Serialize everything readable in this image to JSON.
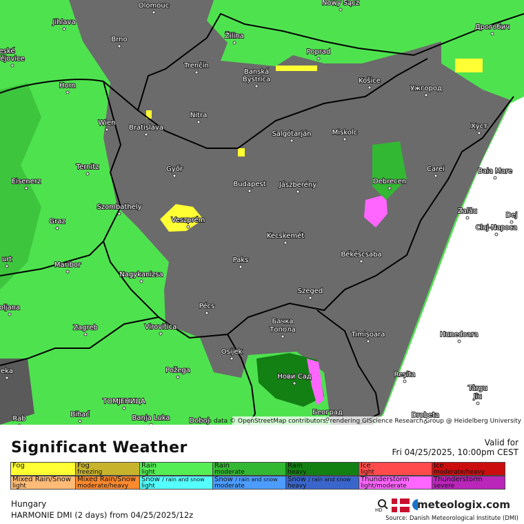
{
  "map": {
    "cities": [
      {
        "label": "Olomouc"
      },
      {
        "label": "Nowy Sącz"
      },
      {
        "label": "Jihlava"
      },
      {
        "label": "eské"
      },
      {
        "label": "ějovice"
      },
      {
        "label": "Brno"
      },
      {
        "label": "Žilina"
      },
      {
        "label": "Poprad"
      },
      {
        "label": "Дрогобич"
      },
      {
        "label": "Horn"
      },
      {
        "label": "Trenčín"
      },
      {
        "label": "Banská"
      },
      {
        "label": "Bystrica"
      },
      {
        "label": "Košice"
      },
      {
        "label": "Ужгород"
      },
      {
        "label": "Wien"
      },
      {
        "label": "Bratislava"
      },
      {
        "label": "Nitra"
      },
      {
        "label": "Salgótarján"
      },
      {
        "label": "Miskolc"
      },
      {
        "label": "Хуст"
      },
      {
        "label": "Ternitz"
      },
      {
        "label": "Győr"
      },
      {
        "label": "Carei"
      },
      {
        "label": "Baia Mare"
      },
      {
        "label": "Eisenerz"
      },
      {
        "label": "Budapest"
      },
      {
        "label": "Jászberény"
      },
      {
        "label": "Debrecen"
      },
      {
        "label": "Szombathely"
      },
      {
        "label": "Zalău"
      },
      {
        "label": "Dej"
      },
      {
        "label": "Veszprém"
      },
      {
        "label": "Graz"
      },
      {
        "label": "Cluj-Napoca"
      },
      {
        "label": "Kecskemét"
      },
      {
        "label": "Békéscsaba"
      },
      {
        "label": "Paks"
      },
      {
        "label": "urt"
      },
      {
        "label": "Maribor"
      },
      {
        "label": "Nagykanizsa"
      },
      {
        "label": "Szeged"
      },
      {
        "label": "oljana"
      },
      {
        "label": "Pécs"
      },
      {
        "label": "Zagreb"
      },
      {
        "label": "Virovitica"
      },
      {
        "label": "Бачка"
      },
      {
        "label": "Топола"
      },
      {
        "label": "Timișoara"
      },
      {
        "label": "Hunedoara"
      },
      {
        "label": "Osijek"
      },
      {
        "label": "Нови Сад"
      },
      {
        "label": "Požega"
      },
      {
        "label": "Reșita"
      },
      {
        "label": "eka"
      },
      {
        "label": "Târgu"
      },
      {
        "label": "Jiu"
      },
      {
        "label": "ТОМЈЕНИЦА"
      },
      {
        "label": "Београд"
      },
      {
        "label": "Bihać"
      },
      {
        "label": "Banja Luka"
      },
      {
        "label": "Doboj"
      },
      {
        "label": "Rab"
      },
      {
        "label": "Drobeta"
      }
    ],
    "attribution": "Map data © OpenStreetMap contributors, rendering GIScience Research Group @ Heidelberg University"
  },
  "header": {
    "title": "Significant Weather",
    "valid_label": "Valid for",
    "valid_time": "Fri 04/25/2025, 10:00pm CEST"
  },
  "legend": {
    "rows": [
      [
        {
          "label": "Fog",
          "color": "#ffff33"
        },
        {
          "label": "Fog",
          "sub": "freezing",
          "color": "#c8b42c"
        },
        {
          "label": "Rain",
          "sub": "light",
          "color": "#55ee55"
        },
        {
          "label": "Rain",
          "sub": "moderate",
          "color": "#33b833"
        },
        {
          "label": "Rain",
          "sub": "heavy",
          "color": "#138013"
        },
        {
          "label": "Ice",
          "sub": "light",
          "color": "#ff4b4b"
        },
        {
          "label": "Ice",
          "sub": "moderate/heavy",
          "color": "#cc0d0d"
        }
      ],
      [
        {
          "label": "Mixed Rain/Snow",
          "sub": "light",
          "color": "#ffbb77"
        },
        {
          "label": "Mixed Rain/Snow",
          "sub": "moderate/heavy",
          "color": "#ff8a2e"
        },
        {
          "label": "Snow",
          "note": "/ rain and snow",
          "sub": "light",
          "color": "#55ffff"
        },
        {
          "label": "Snow",
          "note": "/ rain and snow",
          "sub": "moderate",
          "color": "#4d9cff"
        },
        {
          "label": "Snow",
          "note": "/ rain and snow",
          "sub": "heavy",
          "color": "#3a66cc"
        },
        {
          "label": "Thunderstorm",
          "sub": "light/moderate",
          "color": "#ff66ff"
        },
        {
          "label": "Thunderstorm",
          "sub": "severe",
          "color": "#b926b9"
        }
      ]
    ]
  },
  "footer": {
    "region": "Hungary",
    "model": "HARMONIE DMI (2 days) from 04/25/2025/12z",
    "hd": "HD",
    "brand": "meteologix.com",
    "source": "Source: Danish Meteorological Institute (DMI)"
  }
}
